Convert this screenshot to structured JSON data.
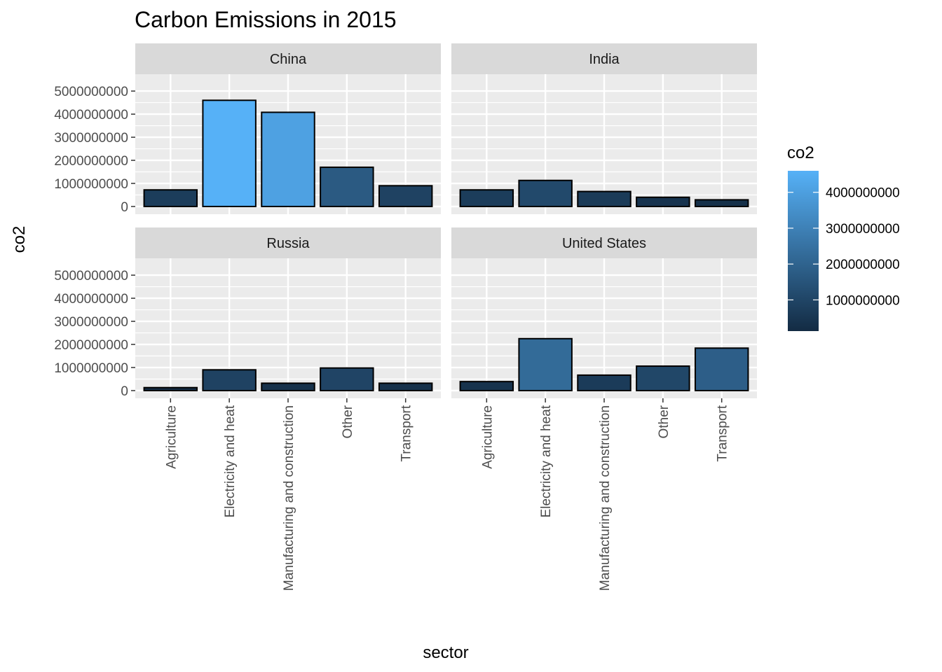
{
  "chart_data": {
    "type": "bar",
    "title": "Carbon Emissions in 2015",
    "xlabel": "sector",
    "ylabel": "co2",
    "categories": [
      "Agriculture",
      "Electricity and heat",
      "Manufacturing and construction",
      "Other",
      "Transport"
    ],
    "ylim": [
      0,
      5200000000
    ],
    "y_ticks": [
      0,
      1000000000,
      2000000000,
      3000000000,
      4000000000,
      5000000000
    ],
    "y_tick_labels": [
      "0",
      "1000000000",
      "2000000000",
      "3000000000",
      "4000000000",
      "5000000000"
    ],
    "grid": true,
    "facets": [
      {
        "name": "China",
        "values": [
          720000000,
          4600000000,
          4080000000,
          1700000000,
          900000000
        ]
      },
      {
        "name": "India",
        "values": [
          720000000,
          1130000000,
          650000000,
          400000000,
          290000000
        ]
      },
      {
        "name": "Russia",
        "values": [
          130000000,
          900000000,
          320000000,
          980000000,
          320000000
        ]
      },
      {
        "name": "United States",
        "values": [
          390000000,
          2250000000,
          670000000,
          1060000000,
          1840000000
        ]
      }
    ],
    "legend": {
      "title": "co2",
      "placement": "right",
      "ticks": [
        1000000000,
        2000000000,
        3000000000,
        4000000000
      ],
      "tick_labels": [
        "1000000000",
        "2000000000",
        "3000000000",
        "4000000000"
      ],
      "range": [
        130000000,
        4600000000
      ],
      "color_low": "#132B43",
      "color_high": "#56B1F7"
    },
    "colors": {
      "panel_background": "#EBEBEB",
      "strip_background": "#D9D9D9",
      "grid": "#FFFFFF",
      "bar_outline": "#000000"
    }
  }
}
